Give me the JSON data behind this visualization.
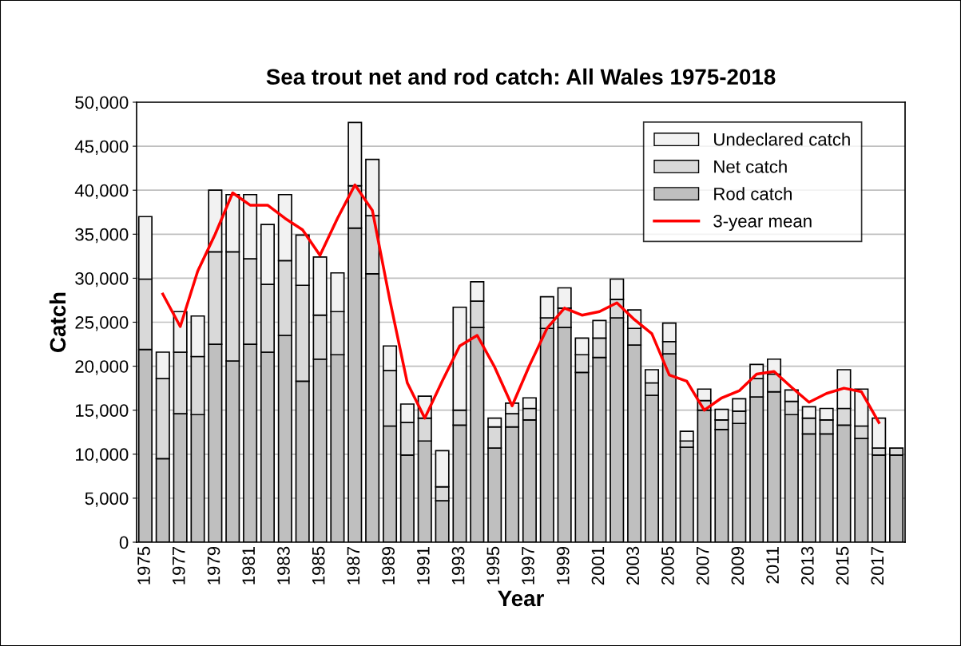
{
  "chart_data": {
    "type": "bar",
    "stacked": true,
    "title": "Sea trout net and rod catch: All Wales 1975-2018",
    "xlabel": "Year",
    "ylabel": "Catch",
    "categories": [
      "1975",
      null,
      "1977",
      null,
      "1979",
      null,
      "1981",
      null,
      "1983",
      null,
      "1985",
      null,
      "1987",
      null,
      "1989",
      null,
      "1991",
      null,
      "1993",
      null,
      "1995",
      null,
      "1997",
      null,
      "1999",
      null,
      "2001",
      null,
      "2003",
      null,
      "2005",
      null,
      "2007",
      null,
      "2009",
      null,
      "2011",
      null,
      "2013",
      null,
      "2015",
      null,
      "2017",
      null
    ],
    "series": [
      {
        "name": "Rod catch",
        "color": "#bfbfbf",
        "values": [
          21900,
          9500,
          14600,
          14500,
          22500,
          20600,
          22500,
          21600,
          23500,
          18300,
          20800,
          21300,
          35700,
          30500,
          13200,
          9900,
          11500,
          4700,
          13300,
          24400,
          10700,
          13100,
          13900,
          24300,
          24400,
          19300,
          21000,
          25500,
          22400,
          16700,
          21400,
          10800,
          15000,
          12800,
          13500,
          16500,
          17100,
          14500,
          12300,
          12300,
          13300,
          11800,
          9900,
          9900
        ]
      },
      {
        "name": "Net catch",
        "color": "#d9d9d9",
        "values": [
          8000,
          9100,
          7000,
          6600,
          10500,
          12400,
          9700,
          7700,
          8500,
          10900,
          5000,
          4900,
          4800,
          6600,
          6300,
          3700,
          2600,
          1600,
          1700,
          3000,
          2400,
          1500,
          1300,
          1200,
          2200,
          2000,
          2200,
          2100,
          1900,
          1400,
          1400,
          700,
          1100,
          1100,
          1400,
          2100,
          2000,
          1500,
          1800,
          1600,
          1900,
          1400,
          800,
          800
        ]
      },
      {
        "name": "Undeclared catch",
        "color": "#f2f2f2",
        "values": [
          7100,
          3000,
          4600,
          4600,
          7000,
          6500,
          7300,
          6800,
          7500,
          5700,
          6600,
          4400,
          7200,
          6400,
          2800,
          2100,
          2500,
          4100,
          11700,
          2200,
          1000,
          1200,
          1200,
          2400,
          2300,
          1900,
          2000,
          2300,
          2100,
          1500,
          2100,
          1100,
          1300,
          1200,
          1400,
          1600,
          1700,
          1300,
          1300,
          1300,
          4400,
          4200,
          3400,
          null
        ]
      },
      {
        "name": "3-year mean",
        "type": "line",
        "color": "#ff0000",
        "values": [
          null,
          28200,
          24500,
          30800,
          35000,
          39700,
          38300,
          38300,
          36800,
          35500,
          32600,
          36800,
          40600,
          37700,
          27500,
          18100,
          14100,
          18300,
          22300,
          23500,
          19900,
          15500,
          20100,
          24300,
          26600,
          25800,
          26200,
          27200,
          25300,
          23700,
          19000,
          18300,
          15000,
          16400,
          17200,
          19100,
          19400,
          17600,
          15900,
          16900,
          17500,
          17100,
          13600,
          null
        ]
      }
    ],
    "ylim": [
      0,
      50000
    ],
    "yticks": [
      {
        "value": 0,
        "label": "0"
      },
      {
        "value": 5000,
        "label": "5,000"
      },
      {
        "value": 10000,
        "label": "10,000"
      },
      {
        "value": 15000,
        "label": "15,000"
      },
      {
        "value": 20000,
        "label": "20,000"
      },
      {
        "value": 25000,
        "label": "25,000"
      },
      {
        "value": 30000,
        "label": "30,000"
      },
      {
        "value": 35000,
        "label": "35,000"
      },
      {
        "value": 40000,
        "label": "40,000"
      },
      {
        "value": 45000,
        "label": "45,000"
      },
      {
        "value": 50000,
        "label": "50,000"
      }
    ],
    "grid": "y",
    "legend": "top right",
    "marker": "none",
    "line_style": "solid"
  }
}
